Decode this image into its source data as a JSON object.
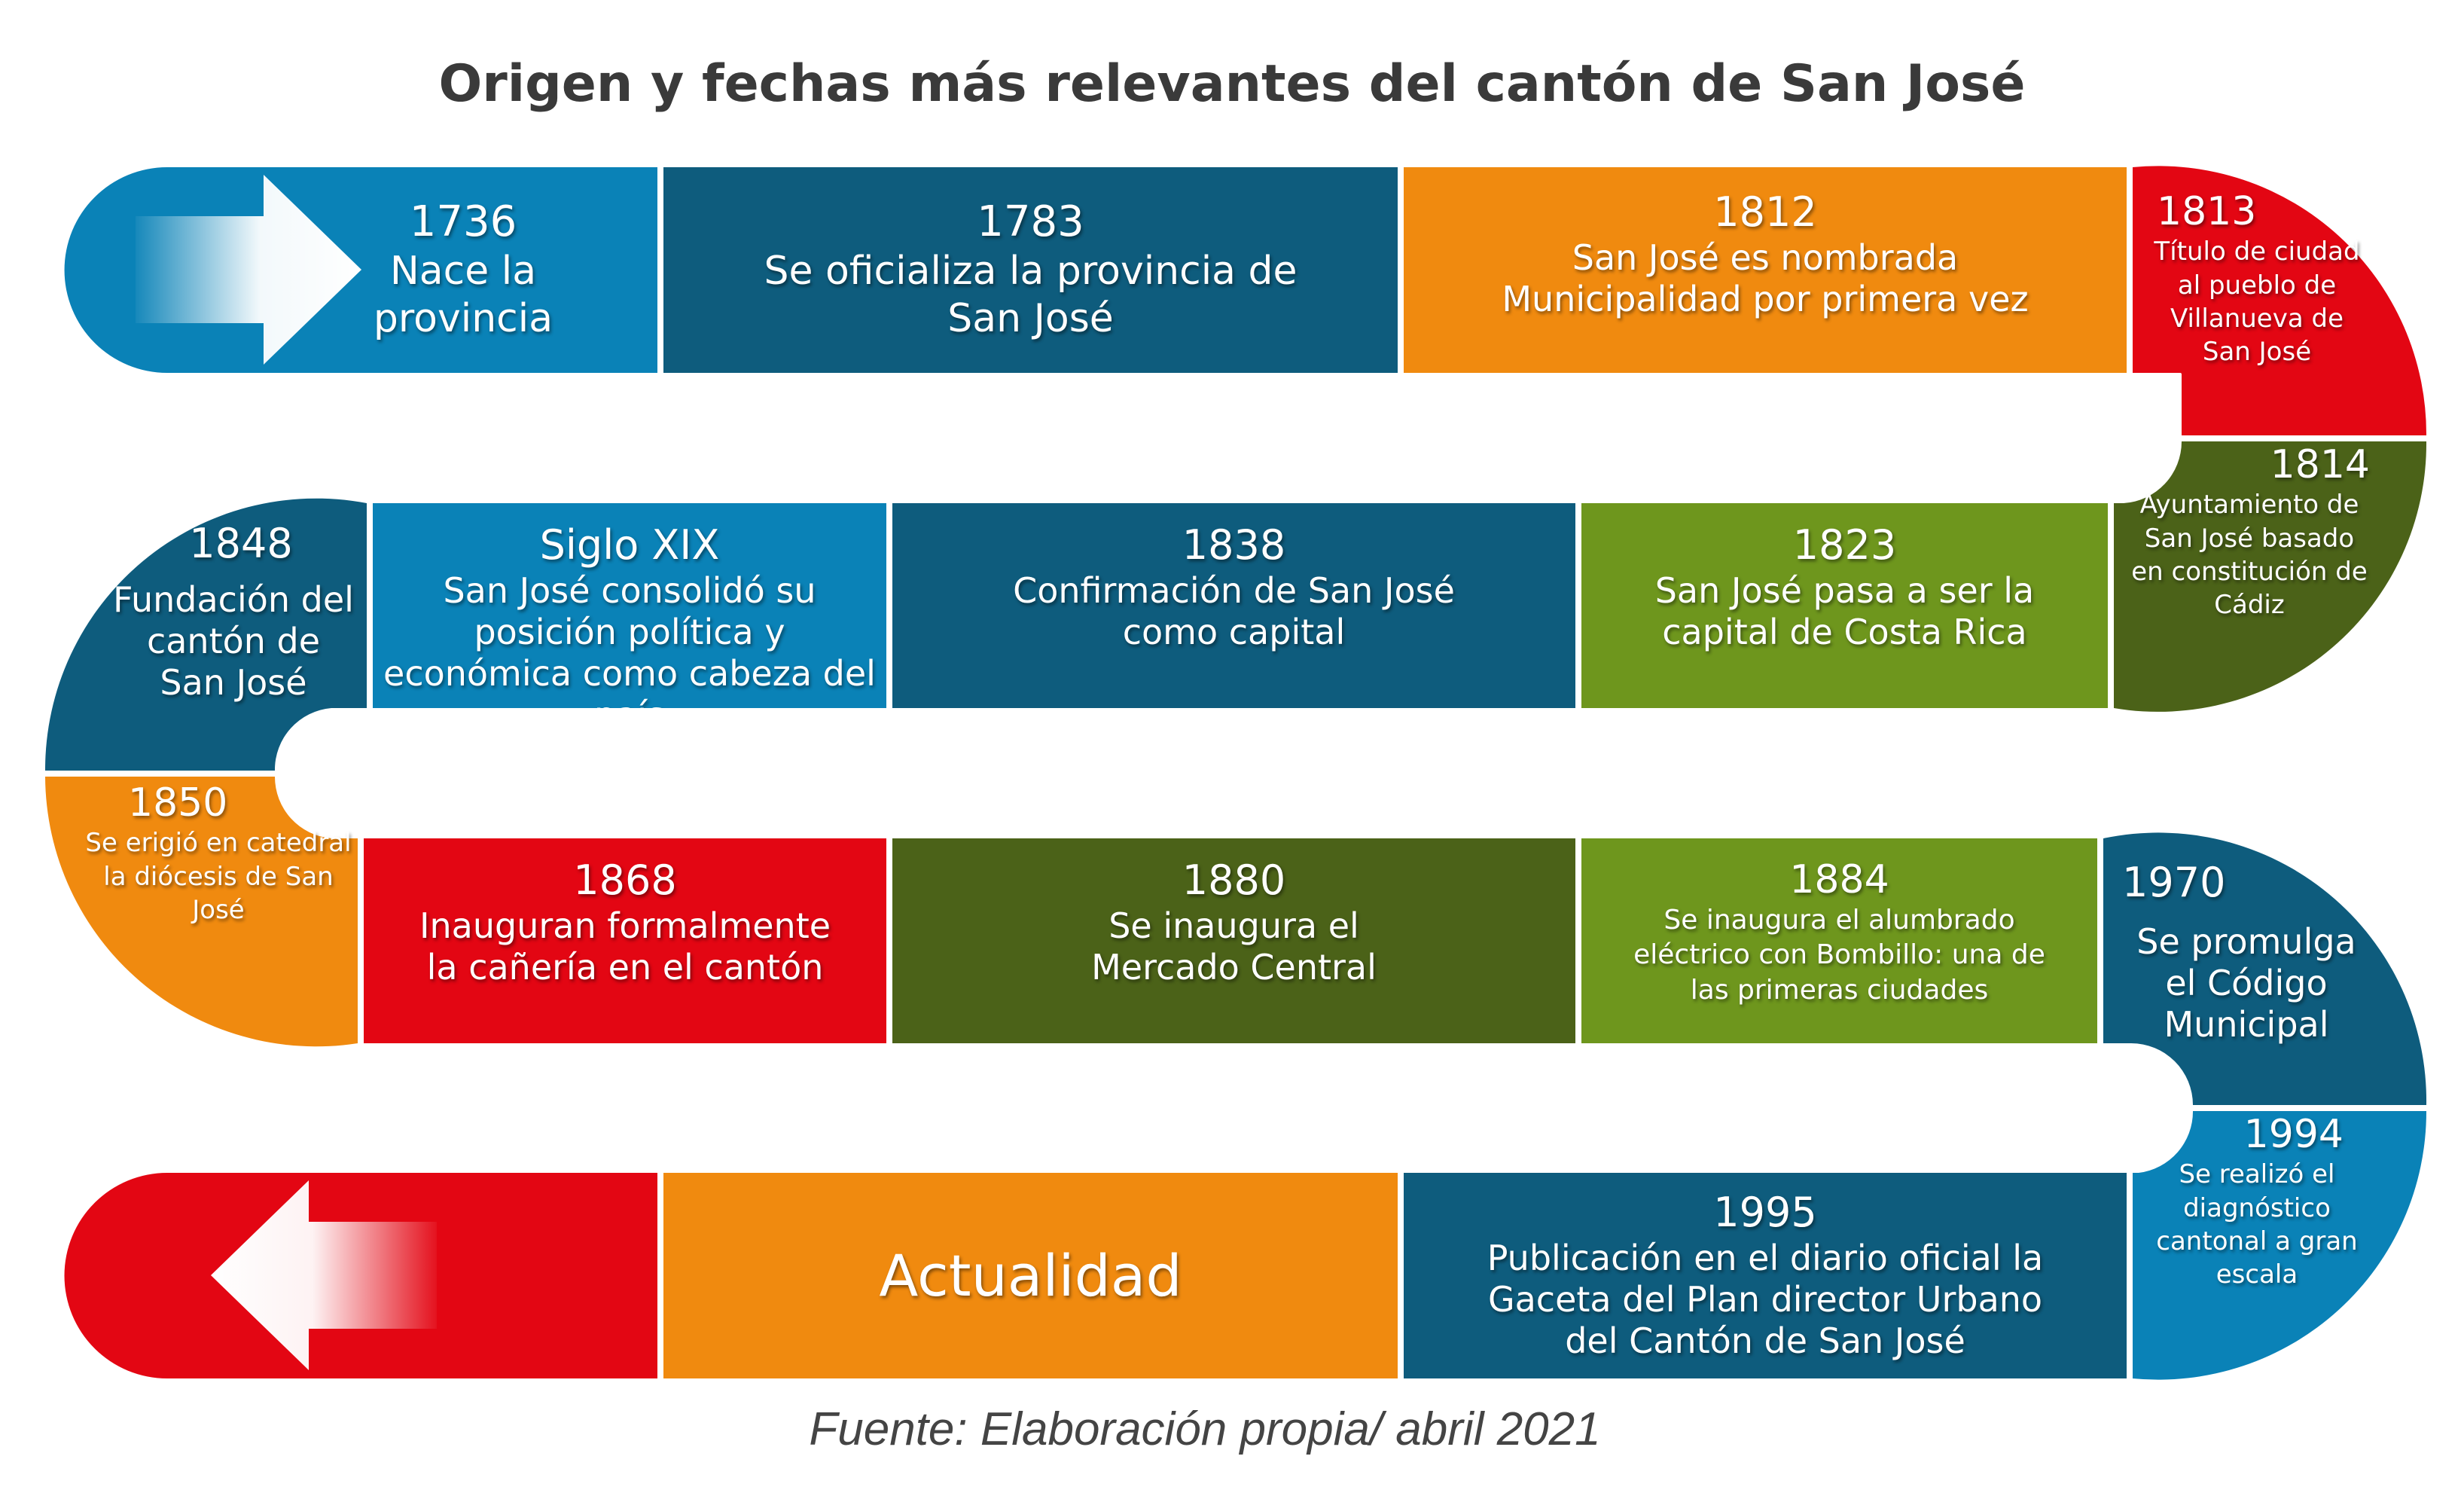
{
  "title": "Origen y fechas más relevantes del cantón de San José",
  "source": "Fuente: Elaboración propia/ abril 2021",
  "colors": {
    "blue_light": "#0a82b7",
    "blue_dark": "#0e5c7d",
    "orange": "#f08a0f",
    "red": "#e30613",
    "green_light": "#6e961d",
    "green_dark": "#4b6218"
  },
  "events": {
    "e1736": {
      "year": "1736",
      "text": "Nace la provincia"
    },
    "e1783": {
      "year": "1783",
      "text": "Se oficializa la provincia de San José"
    },
    "e1812": {
      "year": "1812",
      "text": "San José es nombrada Municipalidad por primera vez"
    },
    "e1813": {
      "year": "1813",
      "text": "Título de ciudad al pueblo de Villanueva de San José"
    },
    "e1814": {
      "year": "1814",
      "text": "Ayuntamiento de San José basado en constitución de Cádiz"
    },
    "e1823": {
      "year": "1823",
      "text": "San José pasa a ser la capital de Costa Rica"
    },
    "e1838": {
      "year": "1838",
      "text": "Confirmación de San José como capital"
    },
    "esiglo": {
      "year": "Siglo XIX",
      "text": "San José consolidó su posición política y económica como cabeza del país"
    },
    "e1848": {
      "year": "1848",
      "text": "Fundación del cantón de San José"
    },
    "e1850": {
      "year": "1850",
      "text": "Se erigió en catedral la diócesis de San José"
    },
    "e1868": {
      "year": "1868",
      "text": "Inauguran formalmente la cañería en el cantón"
    },
    "e1880": {
      "year": "1880",
      "text": "Se inaugura el Mercado Central"
    },
    "e1884": {
      "year": "1884",
      "text": "Se inaugura el alumbrado eléctrico con Bombillo: una de las primeras ciudades"
    },
    "e1970": {
      "year": "1970",
      "text": "Se promulga el Código Municipal"
    },
    "e1994": {
      "year": "1994",
      "text": "Se realizó el diagnóstico cantonal a gran escala"
    },
    "e1995": {
      "year": "1995",
      "text": "Publicación en el diario oficial la Gaceta del Plan director Urbano del Cantón de San José"
    },
    "actualidad": {
      "text": "Actualidad"
    }
  }
}
